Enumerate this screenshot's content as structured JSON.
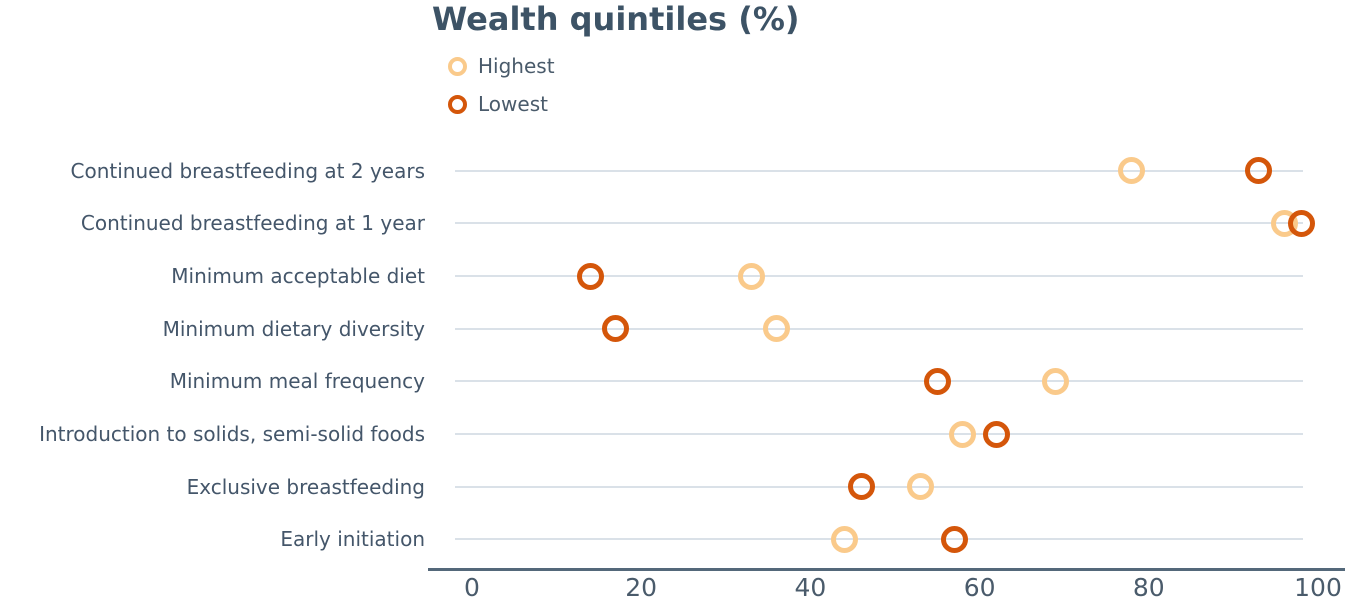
{
  "title": "Wealth quintiles (%)",
  "legend": {
    "items": [
      {
        "label": "Highest",
        "marker": "open-circle",
        "color": "#FACA8B"
      },
      {
        "label": "Lowest",
        "marker": "open-circle",
        "color": "#D4560A"
      }
    ]
  },
  "colors": {
    "title_text": "#3D5366",
    "category_label_text": "#44566A",
    "tick_label_text": "#4A5B6B",
    "legend_label_text": "#4A5B6B",
    "gridline": "#DAE1E8",
    "axis_line": "#54687A",
    "series_highest": "#FACA8B",
    "series_lowest": "#D4560A",
    "background": "#FFFFFF"
  },
  "chart_data": {
    "type": "scatter",
    "variant": "horizontal-dot-plot",
    "title": "Wealth quintiles (%)",
    "categories": [
      "Continued breastfeeding at 2 years",
      "Continued breastfeeding at 1 year",
      "Minimum acceptable diet",
      "Minimum dietary diversity",
      "Minimum meal frequency",
      "Introduction to solids, semi-solid foods",
      "Exclusive breastfeeding",
      "Early initiation"
    ],
    "series": [
      {
        "name": "Highest",
        "color": "#FACA8B",
        "values": [
          78,
          96,
          33,
          36,
          69,
          58,
          53,
          44
        ]
      },
      {
        "name": "Lowest",
        "color": "#D4560A",
        "values": [
          93,
          98,
          14,
          17,
          55,
          62,
          46,
          57
        ]
      }
    ],
    "xlabel": "",
    "ylabel": "",
    "xlim": [
      0,
      100
    ],
    "xticks": [
      0,
      20,
      40,
      60,
      80,
      100
    ],
    "grid": "horizontal-row-lines",
    "legend_position": "top-left-below-title",
    "marker_style": "open-circle"
  }
}
